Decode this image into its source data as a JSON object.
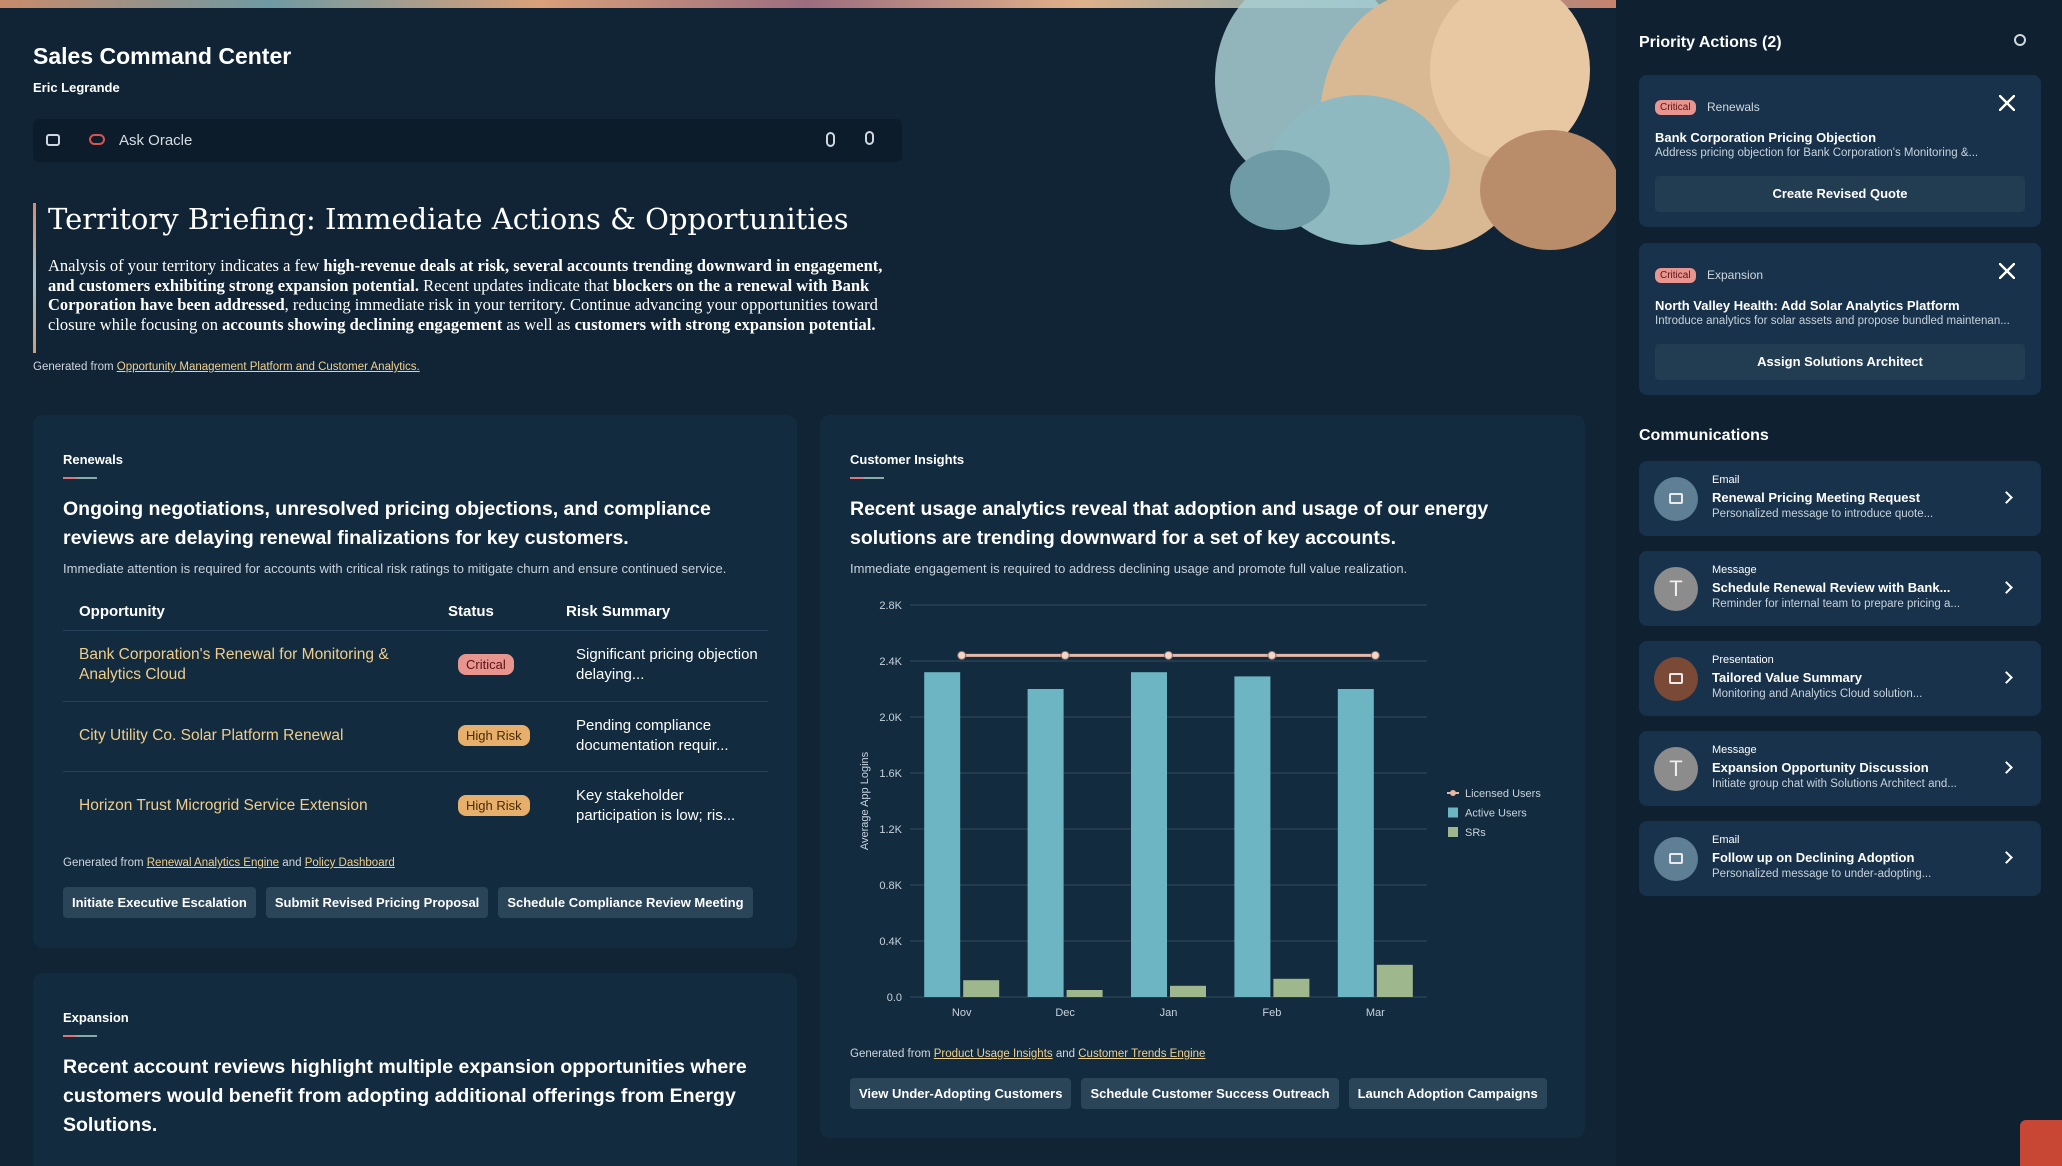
{
  "header": {
    "title": "Sales Command Center",
    "user": "Eric Legrande",
    "search_placeholder": "Ask Oracle"
  },
  "briefing": {
    "title": "Territory Briefing: Immediate Actions & Opportunities",
    "paragraph": [
      "Analysis of your territory indicates a few ",
      "high-revenue deals at risk, several accounts trending downward in engagement, and customers exhibiting strong expansion potential.",
      " Recent updates indicate that ",
      "blockers on the a renewal with Bank Corporation have been addressed",
      ", reducing immediate risk in your territory. Continue advancing your opportunities toward closure while focusing on ",
      "accounts showing declining engagement",
      " as well as ",
      "customers with strong expansion potential."
    ],
    "source_prefix": "Generated from",
    "source": "Opportunity Management Platform and Customer Analytics."
  },
  "renewals": {
    "label": "Renewals",
    "headline": "Ongoing negotiations, unresolved pricing objections, and compliance reviews are delaying renewal finalizations for key customers.",
    "subtext": "Immediate attention is required for accounts with critical risk ratings to mitigate churn and ensure continued service.",
    "table": {
      "headers": [
        "Opportunity",
        "Status",
        "Risk Summary"
      ],
      "rows": [
        [
          "Bank Corporation's Renewal for Monitoring & Analytics Cloud",
          "Critical",
          "Significant pricing objection delaying..."
        ],
        [
          "City Utility Co. Solar Platform Renewal",
          "High Risk",
          "Pending compliance documentation requir..."
        ],
        [
          "Horizon Trust Microgrid Service Extension",
          "High Risk",
          "Key stakeholder participation is low; ris..."
        ]
      ]
    },
    "source_prefix": "Generated from",
    "sources": [
      "Renewal Analytics Engine",
      "Policy Dashboard"
    ],
    "joiner": "and",
    "actions": [
      "Initiate Executive Escalation",
      "Submit Revised Pricing Proposal",
      "Schedule Compliance Review Meeting"
    ]
  },
  "customer_insights": {
    "label": "Customer Insights",
    "headline": "Recent usage analytics reveal that adoption and usage of our energy solutions are trending downward for a set of key accounts.",
    "subtext": "Immediate engagement is required to address declining usage and promote full value realization.",
    "chart": {
      "type": "bar",
      "y_label": "Average App Logins",
      "categories": [
        "Nov",
        "Dec",
        "Jan",
        "Feb",
        "Mar"
      ],
      "series": [
        {
          "name": "Licensed Users",
          "type": "line",
          "color": "#e6b7a6",
          "values": [
            2440,
            2440,
            2440,
            2440,
            2440
          ]
        },
        {
          "name": "Active Users",
          "color": "#6db5c2",
          "values": [
            2320,
            2200,
            2320,
            2290,
            2200
          ]
        },
        {
          "name": "SRs",
          "color": "#9fb78c",
          "values": [
            120,
            50,
            80,
            130,
            230
          ]
        }
      ],
      "ylim": [
        0,
        2800
      ],
      "yticks": [
        {
          "value": 0,
          "label": "0.0"
        },
        {
          "value": 400,
          "label": "0.4K"
        },
        {
          "value": 800,
          "label": "0.8K"
        },
        {
          "value": 1200,
          "label": "1.2K"
        },
        {
          "value": 1600,
          "label": "1.6K"
        },
        {
          "value": 2000,
          "label": "2.0K"
        },
        {
          "value": 2400,
          "label": "2.4K"
        },
        {
          "value": 2800,
          "label": "2.8K"
        }
      ],
      "grid": true
    },
    "source_prefix": "Generated from",
    "sources": [
      "Product Usage Insights",
      "Customer Trends Engine"
    ],
    "joiner": "and",
    "actions": [
      "View Under-Adopting Customers",
      "Schedule Customer Success Outreach",
      "Launch Adoption Campaigns"
    ]
  },
  "expansion": {
    "label": "Expansion",
    "headline": "Recent account reviews highlight multiple expansion opportunities where customers would benefit from adopting additional offerings from Energy Solutions."
  },
  "priority_actions": {
    "title": "Priority Actions (2)",
    "items": [
      {
        "badge": "Critical",
        "category": "Renewals",
        "title": "Bank Corporation Pricing Objection",
        "description": "Address pricing objection for Bank Corporation's Monitoring &...",
        "action": "Create Revised Quote"
      },
      {
        "badge": "Critical",
        "category": "Expansion",
        "title": "North Valley Health: Add Solar Analytics Platform",
        "description": "Introduce analytics for solar assets and propose bundled maintenan...",
        "action": "Assign Solutions Architect"
      }
    ]
  },
  "communications": {
    "title": "Communications",
    "items": [
      {
        "type": "Email",
        "title": "Renewal Pricing Meeting Request",
        "description": "Personalized message to introduce quote..."
      },
      {
        "type": "Message",
        "avatar": "T",
        "title": "Schedule Renewal Review with Bank...",
        "description": "Reminder for internal team to prepare pricing a..."
      },
      {
        "type": "Presentation",
        "title": "Tailored Value Summary",
        "description": "Monitoring and Analytics Cloud solution..."
      },
      {
        "type": "Message",
        "avatar": "T",
        "title": "Expansion Opportunity Discussion",
        "description": "Initiate group chat with Solutions Architect and..."
      },
      {
        "type": "Email",
        "title": "Follow up on Declining Adoption",
        "description": "Personalized message to under-adopting..."
      }
    ]
  }
}
